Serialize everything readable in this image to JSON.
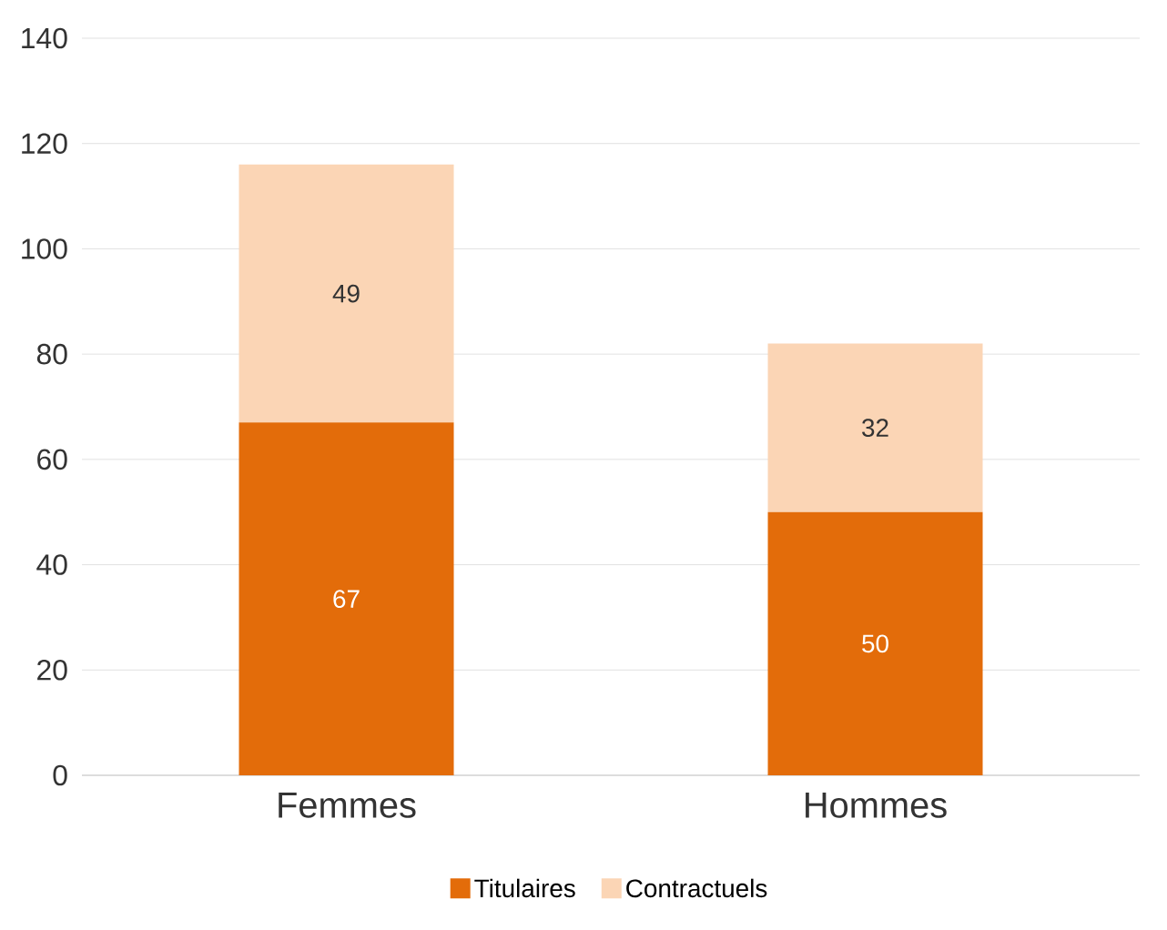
{
  "chart_data": {
    "type": "bar",
    "stacked": true,
    "categories": [
      "Femmes",
      "Hommes"
    ],
    "series": [
      {
        "name": "Titulaires",
        "color": "#e36c0a",
        "values": [
          67,
          50
        ]
      },
      {
        "name": "Contractuels",
        "color": "#fbd5b5",
        "values": [
          49,
          32
        ]
      }
    ],
    "ylim": [
      0,
      140
    ],
    "yticks": [
      0,
      20,
      40,
      60,
      80,
      100,
      120,
      140
    ],
    "grid": "y",
    "legend": "bottom",
    "data_labels": true
  }
}
